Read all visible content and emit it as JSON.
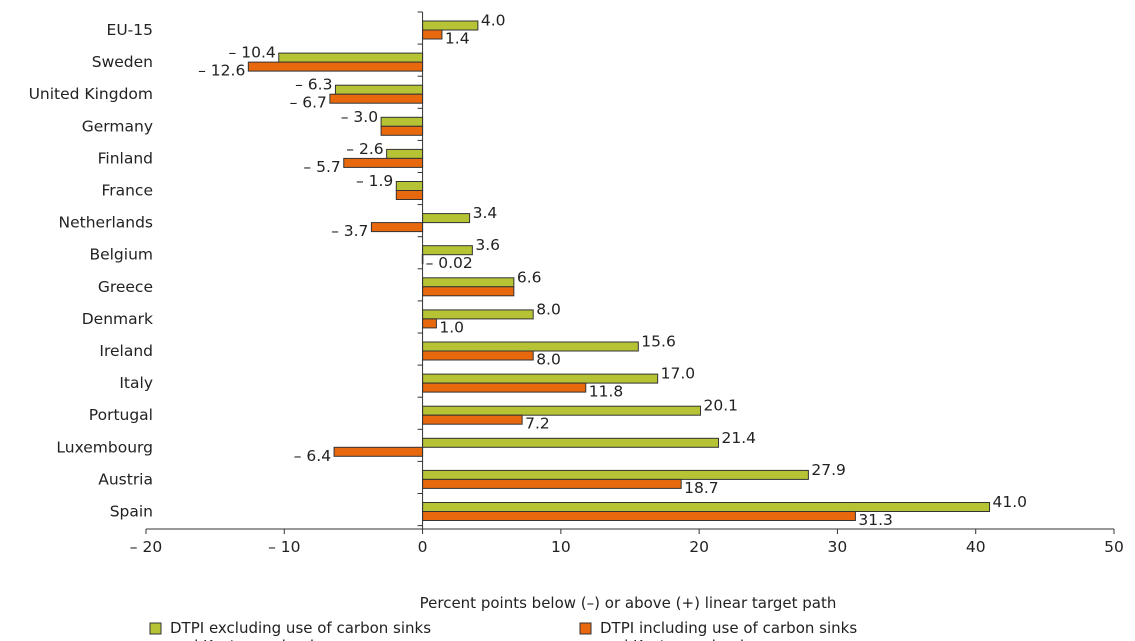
{
  "chart_data": {
    "type": "bar",
    "orientation": "horizontal",
    "categories": [
      "EU-15",
      "Sweden",
      "United Kingdom",
      "Germany",
      "Finland",
      "France",
      "Netherlands",
      "Belgium",
      "Greece",
      "Denmark",
      "Ireland",
      "Italy",
      "Portugal",
      "Luxembourg",
      "Austria",
      "Spain"
    ],
    "series": [
      {
        "name": "DTPI excluding use of carbon sinks and Kyoto mechanisms",
        "legend_lines": [
          "DTPI excluding use of carbon sinks",
          "and Kyoto mechanisms"
        ],
        "color": "#b5c335",
        "values": [
          4.0,
          -10.4,
          -6.3,
          -3.0,
          -2.6,
          -1.9,
          3.4,
          3.6,
          6.6,
          8.0,
          15.6,
          17.0,
          20.1,
          21.4,
          27.9,
          41.0
        ],
        "labels": [
          "4.0",
          "– 10.4",
          "– 6.3",
          "– 3.0",
          "– 2.6",
          "– 1.9",
          "3.4",
          "3.6",
          "6.6",
          "8.0",
          "15.6",
          "17.0",
          "20.1",
          "21.4",
          "27.9",
          "41.0"
        ]
      },
      {
        "name": "DTPI including use of carbon sinks and Kyoto mechanisms",
        "legend_lines": [
          "DTPI including use of carbon sinks",
          "and Kyoto mechanisms"
        ],
        "color": "#e8680e",
        "values": [
          1.4,
          -12.6,
          -6.7,
          -3.0,
          -5.7,
          -1.9,
          -3.7,
          -0.02,
          6.6,
          1.0,
          8.0,
          11.8,
          7.2,
          -6.4,
          18.7,
          31.3
        ],
        "labels": [
          "1.4",
          "– 12.6",
          "– 6.7",
          "",
          "– 5.7",
          "",
          "– 3.7",
          "– 0.02",
          "",
          "1.0",
          "8.0",
          "11.8",
          "7.2",
          "– 6.4",
          "18.7",
          "31.3"
        ]
      }
    ],
    "xlabel": "Percent points below (–) or above (+) linear target path",
    "xlim": [
      -20,
      50
    ],
    "xticks": [
      -20,
      -10,
      0,
      10,
      20,
      30,
      40,
      50
    ],
    "xtick_labels": [
      "– 20",
      "– 10",
      "0",
      "10",
      "20",
      "30",
      "40",
      "50"
    ],
    "grid": false,
    "legend_position": "bottom"
  }
}
